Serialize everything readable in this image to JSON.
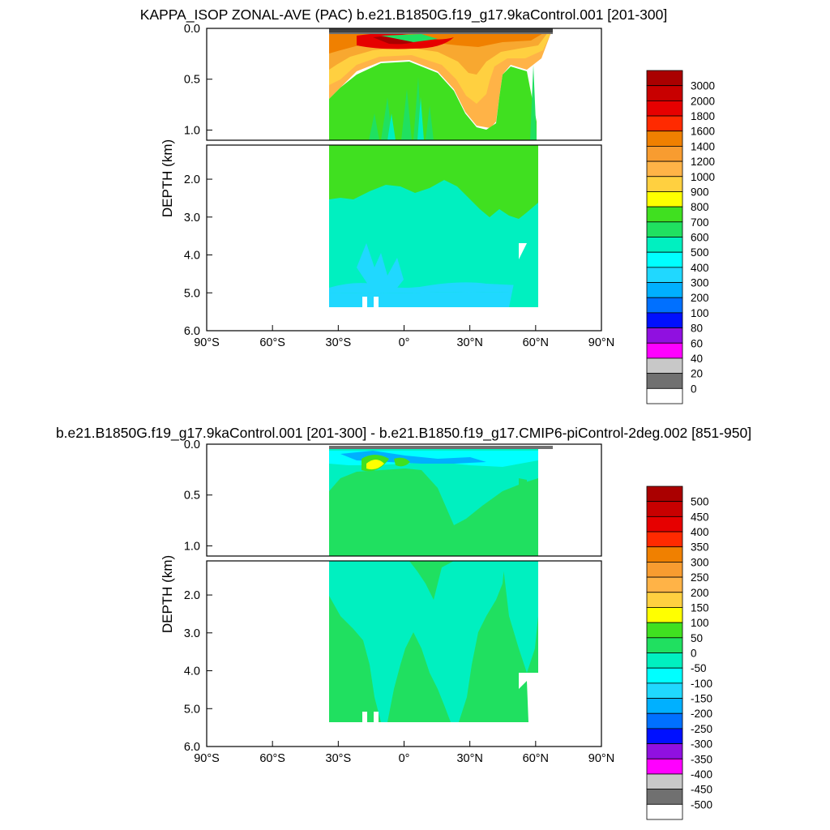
{
  "chart_data": [
    {
      "type": "heatmap",
      "title": "KAPPA_ISOP ZONAL-AVE (PAC) b.e21.B1850G.f19_g17.9kaControl.001 [201-300]",
      "ylabel": "DEPTH (km)",
      "xlabel": "",
      "x_ticks": [
        "90°S",
        "60°S",
        "30°S",
        "0°",
        "30°N",
        "60°N",
        "90°N"
      ],
      "x_tick_values": [
        -90,
        -60,
        -30,
        0,
        30,
        60,
        90
      ],
      "upper_y_ticks": [
        "0.0",
        "0.5",
        "1.0"
      ],
      "upper_y_tick_values": [
        0.0,
        0.5,
        1.0
      ],
      "lower_y_ticks": [
        "2.0",
        "3.0",
        "4.0",
        "5.0",
        "6.0"
      ],
      "lower_y_tick_values": [
        2.0,
        3.0,
        4.0,
        5.0,
        6.0
      ],
      "xlim": [
        -90,
        90
      ],
      "upper_ylim": [
        0.0,
        1.1
      ],
      "lower_ylim": [
        1.1,
        6.0
      ],
      "grid": false,
      "colorbar": {
        "levels": [
          "3000",
          "2000",
          "1800",
          "1600",
          "1400",
          "1200",
          "1000",
          "900",
          "800",
          "700",
          "600",
          "500",
          "400",
          "300",
          "200",
          "100",
          "80",
          "60",
          "40",
          "20",
          "0"
        ],
        "colors": [
          "#aa0000",
          "#c80000",
          "#e60000",
          "#ff2a00",
          "#f08000",
          "#f89c30",
          "#ffb347",
          "#ffd040",
          "#ffff00",
          "#40e020",
          "#20e060",
          "#00f0c0",
          "#00ffff",
          "#20d8ff",
          "#00b0ff",
          "#0070ff",
          "#0010ff",
          "#9010e0",
          "#ff00ff",
          "#c8c8c8",
          "#707070",
          "#ffffff"
        ]
      }
    },
    {
      "type": "heatmap",
      "title": "b.e21.B1850G.f19_g17.9kaControl.001 [201-300] - b.e21.B1850.f19_g17.CMIP6-piControl-2deg.002 [851-950]",
      "ylabel": "DEPTH (km)",
      "xlabel": "",
      "x_ticks": [
        "90°S",
        "60°S",
        "30°S",
        "0°",
        "30°N",
        "60°N",
        "90°N"
      ],
      "x_tick_values": [
        -90,
        -60,
        -30,
        0,
        30,
        60,
        90
      ],
      "upper_y_ticks": [
        "0.0",
        "0.5",
        "1.0"
      ],
      "upper_y_tick_values": [
        0.0,
        0.5,
        1.0
      ],
      "lower_y_ticks": [
        "2.0",
        "3.0",
        "4.0",
        "5.0",
        "6.0"
      ],
      "lower_y_tick_values": [
        2.0,
        3.0,
        4.0,
        5.0,
        6.0
      ],
      "xlim": [
        -90,
        90
      ],
      "upper_ylim": [
        0.0,
        1.1
      ],
      "lower_ylim": [
        1.1,
        6.0
      ],
      "grid": false,
      "colorbar": {
        "levels": [
          "500",
          "450",
          "400",
          "350",
          "300",
          "250",
          "200",
          "150",
          "100",
          "50",
          "0",
          "-50",
          "-100",
          "-150",
          "-200",
          "-250",
          "-300",
          "-350",
          "-400",
          "-450",
          "-500"
        ],
        "colors": [
          "#aa0000",
          "#c80000",
          "#e60000",
          "#ff2a00",
          "#f08000",
          "#f89c30",
          "#ffb347",
          "#ffd040",
          "#ffff00",
          "#40e020",
          "#20e060",
          "#00f0c0",
          "#00ffff",
          "#20d8ff",
          "#00b0ff",
          "#0070ff",
          "#0010ff",
          "#9010e0",
          "#ff00ff",
          "#c8c8c8",
          "#707070",
          "#ffffff"
        ]
      }
    }
  ]
}
